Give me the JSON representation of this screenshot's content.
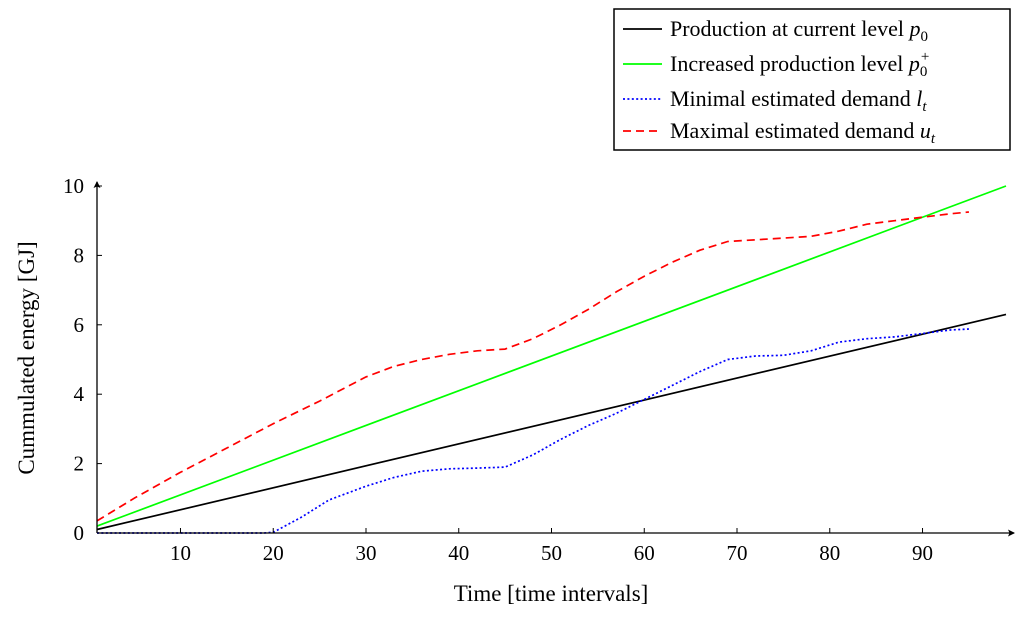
{
  "chart_data": {
    "type": "line",
    "title": "",
    "xlabel": "Time [time intervals]",
    "ylabel": "Cummulated energy [GJ]",
    "xlim": [
      1,
      99
    ],
    "ylim": [
      0,
      10
    ],
    "x_ticks": [
      10,
      20,
      30,
      40,
      50,
      60,
      70,
      80,
      90
    ],
    "y_ticks": [
      0,
      2,
      4,
      6,
      8,
      10
    ],
    "grid": false,
    "legend_position": "top-right",
    "series": [
      {
        "name": "Production at current level p0",
        "legend_text": "Production at current level ",
        "legend_math": "p",
        "legend_sub": "0",
        "legend_sup": "",
        "color": "#000000",
        "style": "solid",
        "x": [
          1,
          99
        ],
        "y": [
          0.1,
          6.3
        ]
      },
      {
        "name": "Increased production level p0+",
        "legend_text": "Increased production level ",
        "legend_math": "p",
        "legend_sub": "0",
        "legend_sup": "+",
        "color": "#00ff00",
        "style": "solid",
        "x": [
          1,
          99
        ],
        "y": [
          0.2,
          10.0
        ]
      },
      {
        "name": "Minimal estimated demand lt",
        "legend_text": "Minimal estimated demand ",
        "legend_math": "l",
        "legend_sub": "t",
        "legend_sup": "",
        "color": "#0000ff",
        "style": "dotted",
        "x": [
          1,
          10,
          19,
          20,
          23,
          26,
          30,
          33,
          36,
          39,
          42,
          45,
          48,
          51,
          54,
          57,
          60,
          63,
          66,
          69,
          72,
          75,
          78,
          81,
          84,
          87,
          90,
          93,
          95
        ],
        "y": [
          0,
          0,
          0,
          0.02,
          0.45,
          0.95,
          1.35,
          1.6,
          1.78,
          1.85,
          1.87,
          1.9,
          2.25,
          2.7,
          3.1,
          3.45,
          3.85,
          4.25,
          4.65,
          5.0,
          5.1,
          5.12,
          5.25,
          5.5,
          5.6,
          5.65,
          5.75,
          5.85,
          5.88
        ]
      },
      {
        "name": "Maximal estimated demand ut",
        "legend_text": "Maximal estimated demand ",
        "legend_math": "u",
        "legend_sub": "t",
        "legend_sup": "",
        "color": "#ff0000",
        "style": "dashed",
        "x": [
          1,
          5,
          10,
          15,
          20,
          25,
          30,
          33,
          36,
          39,
          42,
          45,
          48,
          51,
          54,
          57,
          60,
          63,
          66,
          69,
          72,
          75,
          78,
          81,
          84,
          87,
          90,
          93,
          95
        ],
        "y": [
          0.35,
          1.0,
          1.75,
          2.45,
          3.15,
          3.8,
          4.5,
          4.8,
          5.0,
          5.15,
          5.25,
          5.3,
          5.6,
          6.0,
          6.45,
          6.95,
          7.4,
          7.8,
          8.15,
          8.4,
          8.45,
          8.5,
          8.55,
          8.7,
          8.9,
          9.0,
          9.1,
          9.2,
          9.25
        ]
      }
    ]
  }
}
